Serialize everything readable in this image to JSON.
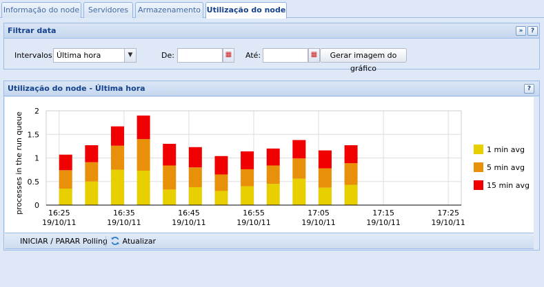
{
  "tabs": [
    {
      "label": "Informação do node",
      "active": false
    },
    {
      "label": "Servidores",
      "active": false
    },
    {
      "label": "Armazenamento",
      "active": false
    },
    {
      "label": "Utilização do node",
      "active": true
    }
  ],
  "filter_panel": {
    "title": "Filtrar data",
    "intervals_label": "Intervalos:",
    "intervals_value": "Última hora",
    "from_label": "De:",
    "from_value": "",
    "to_label": "Até:",
    "to_value": "",
    "generate_button": "Gerar imagem do gráfico",
    "collapse_icon": "double-chevron-up-icon",
    "help_icon": "question-icon"
  },
  "chart_panel": {
    "title": "Utilização do node - Última hora",
    "help_icon": "question-icon"
  },
  "toolbar": {
    "polling_button": "INICIAR / PARAR Polling",
    "refresh_button": "Atualizar",
    "refresh_icon": "refresh-icon"
  },
  "chart_data": {
    "type": "bar",
    "stacked": true,
    "ylabel": "processes in the run queue",
    "ylim": [
      0,
      2
    ],
    "yticks": [
      "0",
      "0.5",
      "1",
      "1.5",
      "2"
    ],
    "xtick_labels": [
      [
        "16:25",
        "19/10/11"
      ],
      [
        "16:35",
        "19/10/11"
      ],
      [
        "16:45",
        "19/10/11"
      ],
      [
        "16:55",
        "19/10/11"
      ],
      [
        "17:05",
        "19/10/11"
      ],
      [
        "17:15",
        "19/10/11"
      ],
      [
        "17:25",
        "19/10/11"
      ]
    ],
    "x_minutes": [
      26,
      30,
      34,
      38,
      42,
      46,
      50,
      54,
      58,
      62,
      66,
      70,
      74
    ],
    "x_tick_minutes": [
      25,
      35,
      45,
      55,
      65,
      75,
      85
    ],
    "x_range_minutes": [
      23,
      87
    ],
    "grid": true,
    "legend_position": "right",
    "series": [
      {
        "name": "1 min avg",
        "color": "#e8cf00",
        "values": [
          0.35,
          0.5,
          0.75,
          0.73,
          0.33,
          0.38,
          0.3,
          0.4,
          0.45,
          0.56,
          0.37,
          0.43,
          null
        ]
      },
      {
        "name": "5 min avg",
        "color": "#e8900a",
        "values": [
          0.39,
          0.41,
          0.51,
          0.67,
          0.51,
          0.42,
          0.35,
          0.36,
          0.39,
          0.43,
          0.41,
          0.46,
          null
        ]
      },
      {
        "name": "15 min avg",
        "color": "#f00000",
        "values": [
          0.33,
          0.36,
          0.41,
          0.5,
          0.46,
          0.43,
          0.39,
          0.38,
          0.36,
          0.39,
          0.38,
          0.38,
          null
        ]
      }
    ]
  }
}
